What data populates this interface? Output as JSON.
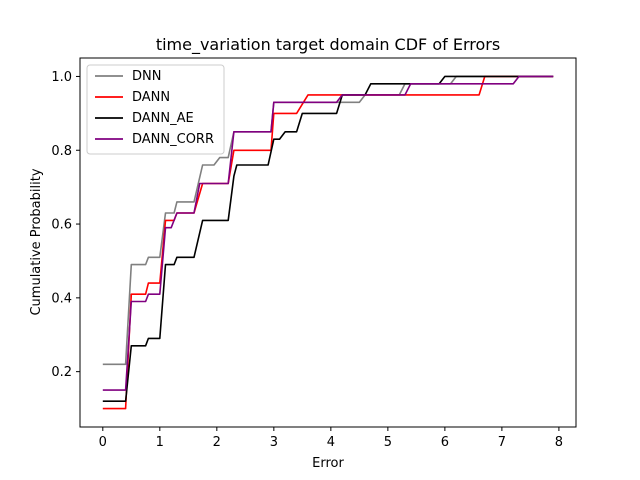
{
  "chart_data": {
    "type": "line",
    "title": "time_variation target domain CDF of Errors",
    "xlabel": "Error",
    "ylabel": "Cumulative Probability",
    "xlim": [
      -0.4,
      8.3
    ],
    "ylim": [
      0.05,
      1.05
    ],
    "xticks": [
      0,
      1,
      2,
      3,
      4,
      5,
      6,
      7,
      8
    ],
    "xtick_labels": [
      "0",
      "1",
      "2",
      "3",
      "4",
      "5",
      "6",
      "7",
      "8"
    ],
    "yticks": [
      0.2,
      0.4,
      0.6,
      0.8,
      1.0
    ],
    "ytick_labels": [
      "0.2",
      "0.4",
      "0.6",
      "0.8",
      "1.0"
    ],
    "grid": false,
    "legend_position": "top-left",
    "series": [
      {
        "name": "DNN",
        "color": "#808080",
        "points": [
          [
            0.0,
            0.22
          ],
          [
            0.4,
            0.22
          ],
          [
            0.5,
            0.49
          ],
          [
            0.75,
            0.49
          ],
          [
            0.8,
            0.51
          ],
          [
            1.0,
            0.51
          ],
          [
            1.1,
            0.63
          ],
          [
            1.25,
            0.63
          ],
          [
            1.3,
            0.66
          ],
          [
            1.6,
            0.66
          ],
          [
            1.75,
            0.76
          ],
          [
            1.95,
            0.76
          ],
          [
            2.05,
            0.78
          ],
          [
            2.2,
            0.78
          ],
          [
            2.3,
            0.85
          ],
          [
            2.95,
            0.85
          ],
          [
            3.0,
            0.93
          ],
          [
            4.15,
            0.93
          ],
          [
            4.2,
            0.93
          ],
          [
            4.5,
            0.93
          ],
          [
            4.6,
            0.95
          ],
          [
            5.2,
            0.95
          ],
          [
            5.3,
            0.98
          ],
          [
            6.1,
            0.98
          ],
          [
            6.2,
            1.0
          ],
          [
            7.9,
            1.0
          ]
        ]
      },
      {
        "name": "DANN",
        "color": "#ff0000",
        "points": [
          [
            0.0,
            0.1
          ],
          [
            0.4,
            0.1
          ],
          [
            0.5,
            0.41
          ],
          [
            0.75,
            0.41
          ],
          [
            0.8,
            0.44
          ],
          [
            1.0,
            0.44
          ],
          [
            1.1,
            0.61
          ],
          [
            1.25,
            0.61
          ],
          [
            1.3,
            0.63
          ],
          [
            1.6,
            0.63
          ],
          [
            1.75,
            0.71
          ],
          [
            2.2,
            0.71
          ],
          [
            2.3,
            0.8
          ],
          [
            2.95,
            0.8
          ],
          [
            3.0,
            0.9
          ],
          [
            3.4,
            0.9
          ],
          [
            3.6,
            0.95
          ],
          [
            4.2,
            0.95
          ],
          [
            6.6,
            0.95
          ],
          [
            6.7,
            1.0
          ],
          [
            7.9,
            1.0
          ]
        ]
      },
      {
        "name": "DANN_AE",
        "color": "#000000",
        "points": [
          [
            0.0,
            0.12
          ],
          [
            0.4,
            0.12
          ],
          [
            0.5,
            0.27
          ],
          [
            0.75,
            0.27
          ],
          [
            0.8,
            0.29
          ],
          [
            1.0,
            0.29
          ],
          [
            1.1,
            0.49
          ],
          [
            1.25,
            0.49
          ],
          [
            1.3,
            0.51
          ],
          [
            1.6,
            0.51
          ],
          [
            1.75,
            0.61
          ],
          [
            2.2,
            0.61
          ],
          [
            2.3,
            0.73
          ],
          [
            2.35,
            0.76
          ],
          [
            2.9,
            0.76
          ],
          [
            3.0,
            0.83
          ],
          [
            3.1,
            0.83
          ],
          [
            3.2,
            0.85
          ],
          [
            3.4,
            0.85
          ],
          [
            3.5,
            0.9
          ],
          [
            4.1,
            0.9
          ],
          [
            4.2,
            0.95
          ],
          [
            4.6,
            0.95
          ],
          [
            4.7,
            0.98
          ],
          [
            5.9,
            0.98
          ],
          [
            6.0,
            1.0
          ],
          [
            7.9,
            1.0
          ]
        ]
      },
      {
        "name": "DANN_CORR",
        "color": "#800080",
        "points": [
          [
            0.0,
            0.15
          ],
          [
            0.4,
            0.15
          ],
          [
            0.5,
            0.39
          ],
          [
            0.75,
            0.39
          ],
          [
            0.8,
            0.41
          ],
          [
            1.0,
            0.41
          ],
          [
            1.1,
            0.59
          ],
          [
            1.2,
            0.59
          ],
          [
            1.3,
            0.63
          ],
          [
            1.6,
            0.63
          ],
          [
            1.7,
            0.71
          ],
          [
            2.2,
            0.71
          ],
          [
            2.3,
            0.85
          ],
          [
            2.95,
            0.85
          ],
          [
            3.0,
            0.93
          ],
          [
            3.8,
            0.93
          ],
          [
            3.9,
            0.93
          ],
          [
            4.1,
            0.93
          ],
          [
            4.2,
            0.95
          ],
          [
            5.3,
            0.95
          ],
          [
            5.4,
            0.98
          ],
          [
            7.2,
            0.98
          ],
          [
            7.3,
            1.0
          ],
          [
            7.9,
            1.0
          ]
        ]
      }
    ]
  }
}
